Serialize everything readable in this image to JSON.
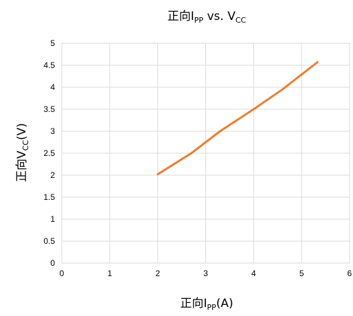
{
  "chart_data": {
    "type": "line",
    "title": {
      "prefix": "正向I",
      "sub": "PP",
      "suffix": " vs. V",
      "sub2": "CC"
    },
    "xlabel": {
      "prefix": "正向I",
      "sub": "PP",
      "suffix": "(A)"
    },
    "ylabel": {
      "prefix": "正向V",
      "sub": "CC",
      "suffix": "(V)"
    },
    "xlim": [
      0,
      6
    ],
    "ylim": [
      0,
      5
    ],
    "xticks": [
      0,
      1,
      2,
      3,
      4,
      5,
      6
    ],
    "yticks": [
      0,
      0.5,
      1,
      1.5,
      2,
      2.5,
      3,
      3.5,
      4,
      4.5,
      5
    ],
    "grid": true,
    "legend": "none",
    "series": [
      {
        "color": "#ed7d31",
        "x": [
          2.0,
          2.7,
          3.3,
          4.0,
          4.6,
          5.33
        ],
        "y": [
          2.02,
          2.5,
          3.0,
          3.5,
          3.95,
          4.57
        ]
      }
    ]
  }
}
